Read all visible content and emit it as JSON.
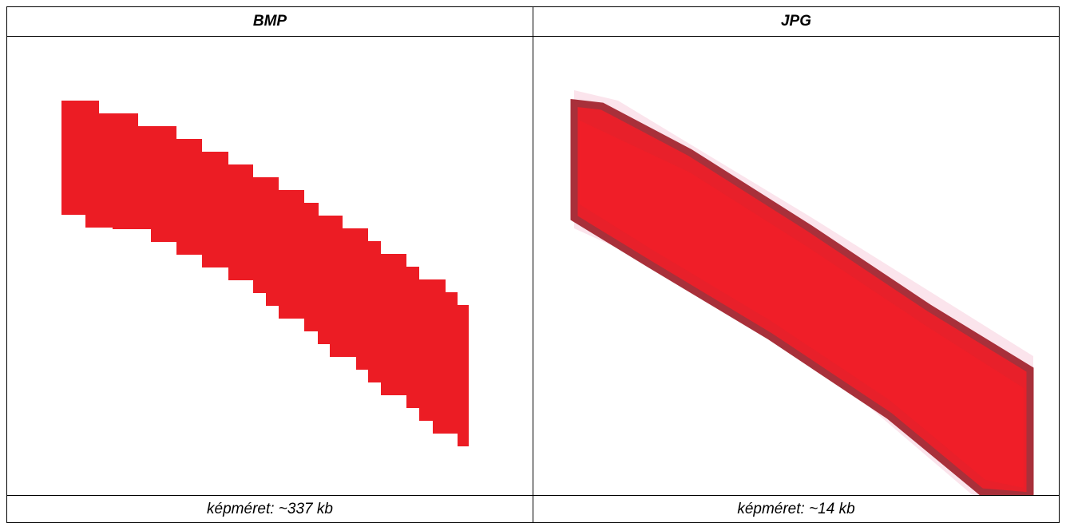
{
  "table": {
    "headers": [
      "BMP",
      "JPG"
    ],
    "captions": [
      "képméret: ~337 kb",
      "képméret: ~14 kb"
    ]
  }
}
